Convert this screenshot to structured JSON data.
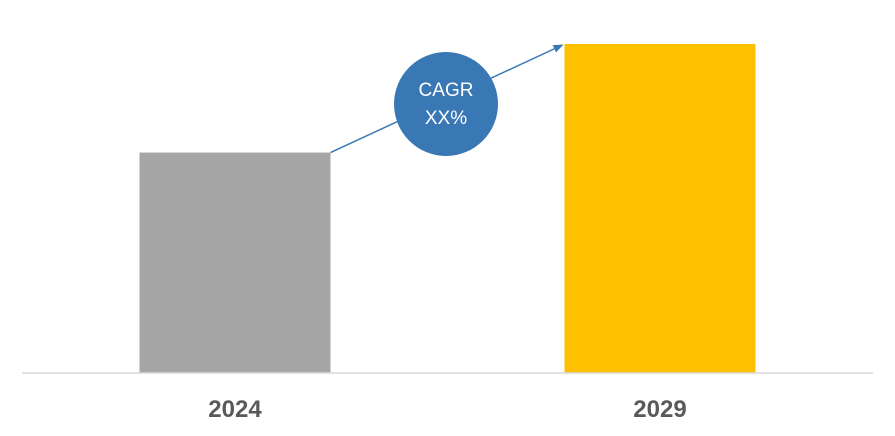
{
  "chart_data": {
    "type": "bar",
    "categories": [
      "2024",
      "2029"
    ],
    "values": [
      0.67,
      1.0
    ],
    "colors": [
      "#a6a6a6",
      "#ffc000"
    ],
    "title": "",
    "xlabel": "",
    "ylabel": "",
    "ylim": [
      0,
      1.0
    ],
    "grid": false,
    "annotation": {
      "line1": "CAGR",
      "line2": "XX%",
      "color": "#3a77b5",
      "text_color": "#ffffff",
      "arrow_from": "2024",
      "arrow_to": "2029"
    },
    "axis_color": "#d9d9d9",
    "tick_label_color": "#595959"
  }
}
